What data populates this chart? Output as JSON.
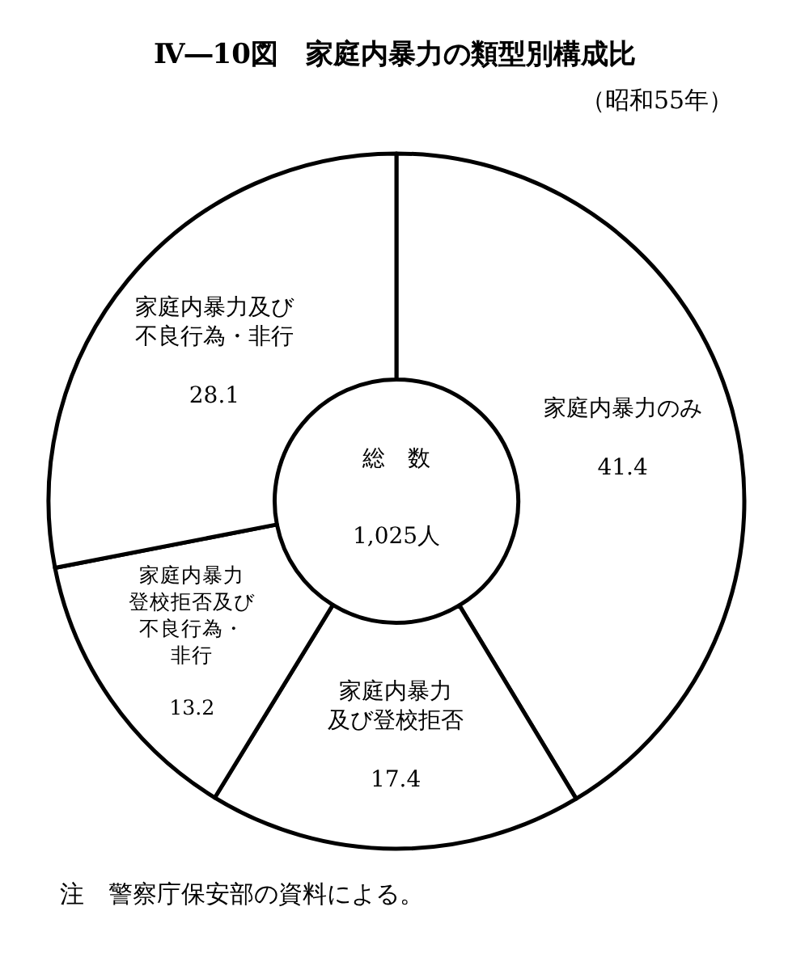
{
  "chart_data": {
    "type": "donut",
    "title": "Ⅳ―10図　家庭内暴力の類型別構成比",
    "subtitle": "（昭和55年）",
    "categories": [
      "家庭内暴力のみ",
      "家庭内暴力及び登校拒否",
      "家庭内暴力登校拒否及び不良行為・非行",
      "家庭内暴力及び不良行為・非行"
    ],
    "values": [
      41.4,
      17.4,
      13.2,
      28.1
    ],
    "colors": [
      "#ffffff",
      "#ffffff",
      "#ffffff",
      "#ffffff"
    ],
    "data_labels": true,
    "annotations": [
      "総　数",
      "1,025人",
      "注　警察庁保安部の資料による。"
    ]
  }
}
